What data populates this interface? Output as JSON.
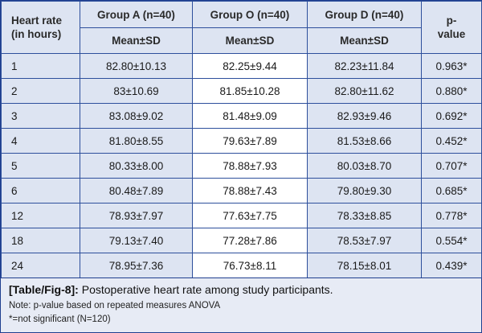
{
  "table": {
    "header": {
      "first_col": [
        "Heart rate",
        "(in hours)"
      ],
      "groups": [
        "Group A (n=40)",
        "Group O (n=40)",
        "Group D (n=40)"
      ],
      "sub_label": "Mean±SD",
      "pvalue": [
        "p-",
        "value"
      ]
    },
    "rows": [
      {
        "hour": "1",
        "a": "82.80±10.13",
        "o": "82.25±9.44",
        "d": "82.23±11.84",
        "p": "0.963*"
      },
      {
        "hour": "2",
        "a": "83±10.69",
        "o": "81.85±10.28",
        "d": "82.80±11.62",
        "p": "0.880*"
      },
      {
        "hour": "3",
        "a": "83.08±9.02",
        "o": "81.48±9.09",
        "d": "82.93±9.46",
        "p": "0.692*"
      },
      {
        "hour": "4",
        "a": "81.80±8.55",
        "o": "79.63±7.89",
        "d": "81.53±8.66",
        "p": "0.452*"
      },
      {
        "hour": "5",
        "a": "80.33±8.00",
        "o": "78.88±7.93",
        "d": "80.03±8.70",
        "p": "0.707*"
      },
      {
        "hour": "6",
        "a": "80.48±7.89",
        "o": "78.88±7.43",
        "d": "79.80±9.30",
        "p": "0.685*"
      },
      {
        "hour": "12",
        "a": "78.93±7.97",
        "o": "77.63±7.75",
        "d": "78.33±8.85",
        "p": "0.778*"
      },
      {
        "hour": "18",
        "a": "79.13±7.40",
        "o": "77.28±7.86",
        "d": "78.53±7.97",
        "p": "0.554*"
      },
      {
        "hour": "24",
        "a": "78.95±7.36",
        "o": "76.73±8.11",
        "d": "78.15±8.01",
        "p": "0.439*"
      }
    ]
  },
  "caption": {
    "label": "[Table/Fig-8]:",
    "title": " Postoperative heart rate among study participants.",
    "note1": "Note: p-value based on repeated measures ANOVA",
    "note2": "*=not significant (N=120)"
  },
  "colors": {
    "border": "#2d4f9c",
    "header_bg": "#dde4f2",
    "caption_bg": "#e7ebf5"
  }
}
